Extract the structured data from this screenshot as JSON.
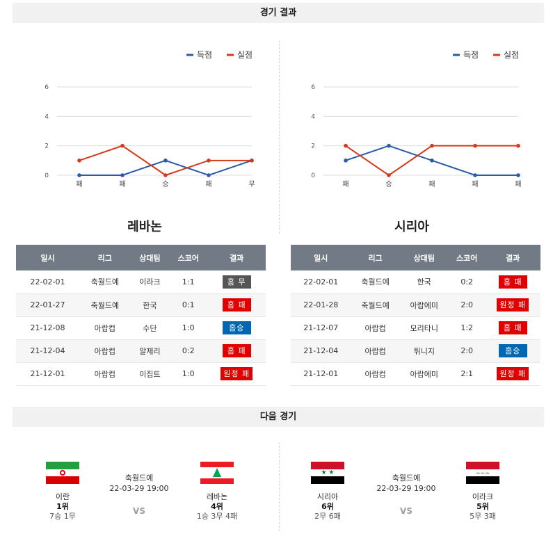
{
  "sections": {
    "results_title": "경기 결과",
    "next_title": "다음 경기"
  },
  "legend": {
    "scored": "득점",
    "conceded": "실점",
    "scored_color": "#2a5aa8",
    "conceded_color": "#d43a1a"
  },
  "charts": [
    {
      "type": "line",
      "categories": [
        "패",
        "패",
        "승",
        "패",
        "무"
      ],
      "y_ticks": [
        "0",
        "2",
        "4",
        "6"
      ],
      "ylim": [
        0,
        6
      ],
      "scored": [
        0,
        0,
        1,
        0,
        1
      ],
      "conceded": [
        1,
        2,
        0,
        1,
        1
      ]
    },
    {
      "type": "line",
      "categories": [
        "패",
        "승",
        "패",
        "패",
        "패"
      ],
      "y_ticks": [
        "0",
        "2",
        "4",
        "6"
      ],
      "ylim": [
        0,
        6
      ],
      "scored": [
        1,
        2,
        1,
        0,
        0
      ],
      "conceded": [
        2,
        0,
        2,
        2,
        2
      ]
    }
  ],
  "chart_data": [
    {
      "type": "line",
      "categories": [
        "패",
        "패",
        "승",
        "패",
        "무"
      ],
      "series": [
        {
          "name": "득점",
          "values": [
            0,
            0,
            1,
            0,
            1
          ]
        },
        {
          "name": "실점",
          "values": [
            1,
            2,
            0,
            1,
            1
          ]
        }
      ],
      "ylim": [
        0,
        6
      ],
      "legend": "top-right",
      "grid": true
    },
    {
      "type": "line",
      "categories": [
        "패",
        "승",
        "패",
        "패",
        "패"
      ],
      "series": [
        {
          "name": "득점",
          "values": [
            1,
            2,
            1,
            0,
            0
          ]
        },
        {
          "name": "실점",
          "values": [
            2,
            0,
            2,
            2,
            2
          ]
        }
      ],
      "ylim": [
        0,
        6
      ],
      "legend": "top-right",
      "grid": true
    }
  ],
  "headers": [
    "일시",
    "리그",
    "상대팀",
    "스코어",
    "결과"
  ],
  "teams": [
    {
      "name": "레바논",
      "rows": [
        {
          "date": "22-02-01",
          "league": "축월드예",
          "opponent": "이라크",
          "score": "1:1",
          "result": "홈 무",
          "kind": "draw"
        },
        {
          "date": "22-01-27",
          "league": "축월드예",
          "opponent": "한국",
          "score": "0:1",
          "result": "홈 패",
          "kind": "loss"
        },
        {
          "date": "21-12-08",
          "league": "아랍컵",
          "opponent": "수단",
          "score": "1:0",
          "result": "홈승",
          "kind": "win"
        },
        {
          "date": "21-12-04",
          "league": "아랍컵",
          "opponent": "알제리",
          "score": "0:2",
          "result": "홈 패",
          "kind": "loss"
        },
        {
          "date": "21-12-01",
          "league": "아랍컵",
          "opponent": "이집트",
          "score": "1:0",
          "result": "원정 패",
          "kind": "loss"
        }
      ]
    },
    {
      "name": "시리아",
      "rows": [
        {
          "date": "22-02-01",
          "league": "축월드예",
          "opponent": "한국",
          "score": "0:2",
          "result": "홈 패",
          "kind": "loss"
        },
        {
          "date": "22-01-28",
          "league": "축월드예",
          "opponent": "아랍에미",
          "score": "2:0",
          "result": "원정 패",
          "kind": "loss"
        },
        {
          "date": "21-12-07",
          "league": "아랍컵",
          "opponent": "모리타니",
          "score": "1:2",
          "result": "홈 패",
          "kind": "loss"
        },
        {
          "date": "21-12-04",
          "league": "아랍컵",
          "opponent": "튀니지",
          "score": "2:0",
          "result": "홈승",
          "kind": "win"
        },
        {
          "date": "21-12-01",
          "league": "아랍컵",
          "opponent": "아랍에미",
          "score": "2:1",
          "result": "원정 패",
          "kind": "loss"
        }
      ]
    }
  ],
  "next_matches": [
    {
      "league": "축월드예",
      "datetime": "22-03-29 19:00",
      "vs": "VS",
      "home": {
        "name": "이란",
        "rank": "1위",
        "record": "7승 1무",
        "flag": "iran-flag-icon"
      },
      "away": {
        "name": "레바논",
        "rank": "4위",
        "record": "1승 3무 4패",
        "flag": "lebanon-flag-icon"
      }
    },
    {
      "league": "축월드예",
      "datetime": "22-03-29 19:00",
      "vs": "VS",
      "home": {
        "name": "시리아",
        "rank": "6위",
        "record": "2무 6패",
        "flag": "syria-flag-icon"
      },
      "away": {
        "name": "이라크",
        "rank": "5위",
        "record": "5무 3패",
        "flag": "iraq-flag-icon"
      }
    }
  ]
}
